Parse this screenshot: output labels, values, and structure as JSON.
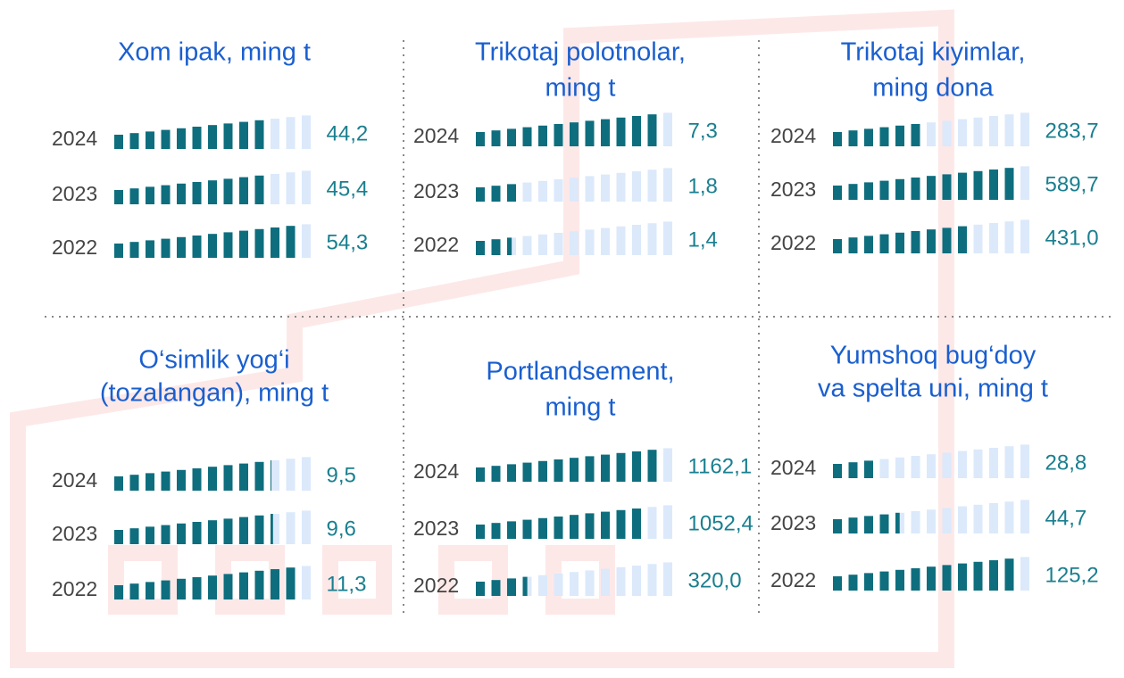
{
  "chart_data": [
    {
      "type": "pictogram",
      "title": [
        "Xom ipak, ming t"
      ],
      "categories": [
        "2024",
        "2023",
        "2022"
      ],
      "values": [
        44.2,
        45.4,
        54.3
      ],
      "value_labels": [
        "44,2",
        "45,4",
        "54,3"
      ],
      "color": "#0e6e7e"
    },
    {
      "type": "pictogram",
      "title": [
        "Trikotaj polotnolar,",
        "ming t"
      ],
      "categories": [
        "2024",
        "2023",
        "2022"
      ],
      "values": [
        7.3,
        1.8,
        1.4
      ],
      "value_labels": [
        "7,3",
        "1,8",
        "1,4"
      ],
      "color": "#0e6e7e"
    },
    {
      "type": "pictogram",
      "title": [
        "Trikotaj kiyimlar,",
        "ming dona"
      ],
      "categories": [
        "2024",
        "2023",
        "2022"
      ],
      "values": [
        283.7,
        589.7,
        431.0
      ],
      "value_labels": [
        "283,7",
        "589,7",
        "431,0"
      ],
      "color": "#0e6e7e"
    },
    {
      "type": "pictogram",
      "title": [
        "O‘simlik yog‘i",
        "(tozalangan), ming t"
      ],
      "categories": [
        "2024",
        "2023",
        "2022"
      ],
      "values": [
        9.5,
        9.6,
        11.3
      ],
      "value_labels": [
        "9,5",
        "9,6",
        "11,3"
      ],
      "color": "#0e6e7e"
    },
    {
      "type": "pictogram",
      "title": [
        "Portlandsement,",
        "ming t"
      ],
      "categories": [
        "2024",
        "2023",
        "2022"
      ],
      "values": [
        1162.1,
        1052.4,
        320.0
      ],
      "value_labels": [
        "1162,1",
        "1052,4",
        "320,0"
      ],
      "color": "#0e6e7e"
    },
    {
      "type": "pictogram",
      "title": [
        "Yumshoq bug‘doy",
        "va spelta uni, ming t"
      ],
      "categories": [
        "2024",
        "2023",
        "2022"
      ],
      "values": [
        28.8,
        44.7,
        125.2
      ],
      "value_labels": [
        "28,8",
        "44,7",
        "125,2"
      ],
      "color": "#0e6e7e"
    }
  ]
}
